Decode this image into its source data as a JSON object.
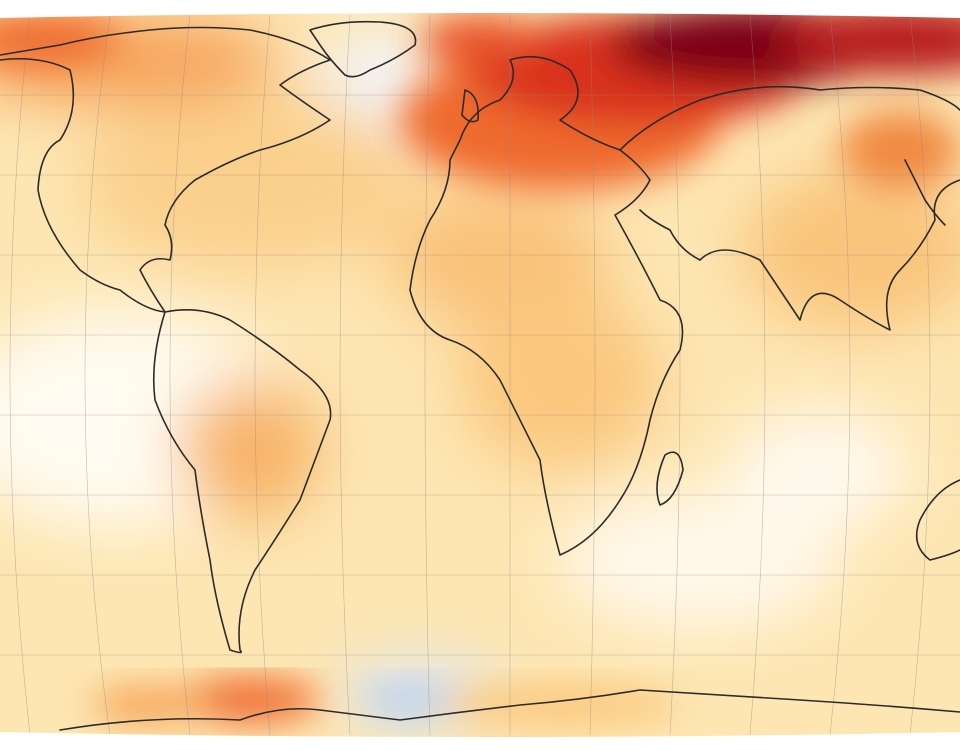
{
  "map": {
    "projection": "robinson",
    "grid": true,
    "colors": {
      "ocean_base": "#fde6b2",
      "cool": "#eef3fb",
      "cooler": "#bcd2ec",
      "warm": "#fbc77a",
      "warmer": "#f7a155",
      "hot": "#ef6a2e",
      "hotter": "#d9301e",
      "hottest": "#7d0016",
      "coastline": "#2b2b2b",
      "gridline": "#8a8a8a"
    }
  }
}
